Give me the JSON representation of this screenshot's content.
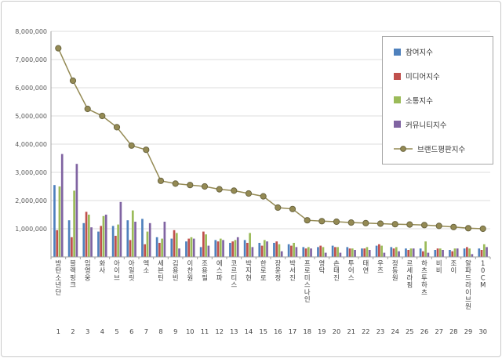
{
  "page": {
    "background": "#ffffff",
    "border_color": "#c9c9c9"
  },
  "chart_data": {
    "type": "bar+line",
    "title": "",
    "xlabel": "",
    "ylabel": "",
    "ylim": [
      0,
      8000000
    ],
    "ytick_step": 1000000,
    "ytick_labels": [
      "1,000,000",
      "2,000,000",
      "3,000,000",
      "4,000,000",
      "5,000,000",
      "6,000,000",
      "7,000,000",
      "8,000,000"
    ],
    "grid": true,
    "legend_position": "top-right",
    "categories": [
      "방탄소년단",
      "블랙핑크",
      "임영웅",
      "화사",
      "아이브",
      "아일릿",
      "엑소",
      "세븐틴",
      "김용빈",
      "이찬원",
      "조용필",
      "에스파",
      "코르티스",
      "박지현",
      "한로로",
      "장윤정",
      "박서진",
      "프로미스나인",
      "영탁",
      "손태진",
      "투어스",
      "태연",
      "우즈",
      "정동원",
      "르세라핌",
      "하츠투하츠",
      "비비",
      "조이",
      "알파드라이브원",
      "10CM"
    ],
    "ranks": [
      "1",
      "2",
      "3",
      "4",
      "5",
      "6",
      "7",
      "8",
      "9",
      "10",
      "11",
      "12",
      "13",
      "14",
      "15",
      "16",
      "17",
      "18",
      "19",
      "20",
      "21",
      "22",
      "23",
      "24",
      "25",
      "26",
      "27",
      "28",
      "29",
      "30"
    ],
    "series": [
      {
        "name": "참여지수",
        "type": "bar",
        "color": "#4F81BD",
        "values": [
          2550000,
          1300000,
          1200000,
          900000,
          1100000,
          1300000,
          1350000,
          700000,
          650000,
          550000,
          350000,
          600000,
          500000,
          600000,
          500000,
          500000,
          450000,
          350000,
          350000,
          400000,
          350000,
          300000,
          400000,
          350000,
          300000,
          300000,
          250000,
          250000,
          300000,
          300000
        ]
      },
      {
        "name": "미디어지수",
        "type": "bar",
        "color": "#C0504D",
        "values": [
          950000,
          700000,
          1600000,
          1100000,
          750000,
          600000,
          450000,
          500000,
          950000,
          650000,
          900000,
          550000,
          550000,
          500000,
          400000,
          550000,
          400000,
          300000,
          400000,
          350000,
          300000,
          300000,
          450000,
          300000,
          250000,
          200000,
          300000,
          200000,
          350000,
          250000
        ]
      },
      {
        "name": "소통지수",
        "type": "bar",
        "color": "#9BBB59",
        "values": [
          2500000,
          2350000,
          1500000,
          1450000,
          1150000,
          1650000,
          900000,
          650000,
          850000,
          700000,
          800000,
          650000,
          600000,
          850000,
          600000,
          450000,
          500000,
          350000,
          350000,
          350000,
          300000,
          350000,
          400000,
          350000,
          300000,
          550000,
          300000,
          300000,
          300000,
          450000
        ]
      },
      {
        "name": "커뮤니티지수",
        "type": "bar",
        "color": "#8064A2",
        "values": [
          3650000,
          3300000,
          1050000,
          1500000,
          1950000,
          1250000,
          1200000,
          1250000,
          300000,
          650000,
          400000,
          600000,
          700000,
          350000,
          550000,
          200000,
          350000,
          300000,
          150000,
          150000,
          250000,
          250000,
          150000,
          200000,
          300000,
          150000,
          250000,
          300000,
          100000,
          350000
        ]
      },
      {
        "name": "브랜드평판지수",
        "type": "line",
        "color": "#948A54",
        "marker": "circle",
        "marker_stroke": "#6B6640",
        "values": [
          7400000,
          6250000,
          5250000,
          5000000,
          4600000,
          3950000,
          3800000,
          2700000,
          2600000,
          2550000,
          2500000,
          2400000,
          2350000,
          2250000,
          2150000,
          1750000,
          1700000,
          1300000,
          1270000,
          1250000,
          1220000,
          1200000,
          1180000,
          1160000,
          1150000,
          1130000,
          1100000,
          1060000,
          1020000,
          1000000
        ]
      }
    ],
    "axis_text_color": "#595959",
    "label_text_color": "#3f3f3f",
    "gridline_color": "#dcdcdc",
    "axis_line_color": "#a0a0a0"
  }
}
